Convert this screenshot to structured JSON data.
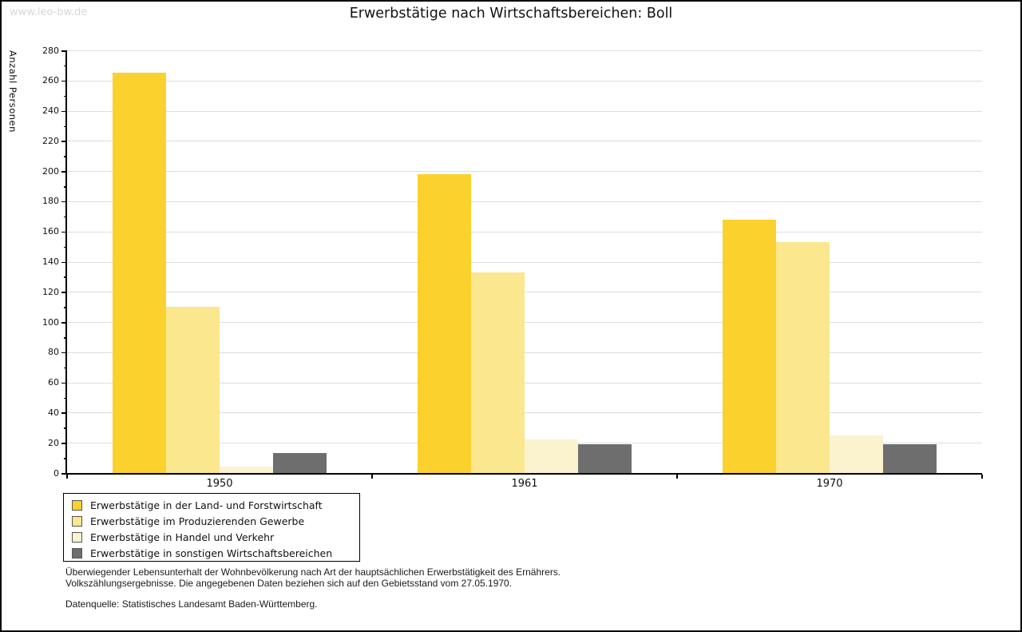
{
  "watermark": "www.leo-bw.de",
  "title": "Erwerbstätige nach Wirtschaftsbereichen: Boll",
  "chart_data": {
    "type": "bar",
    "categories": [
      "1950",
      "1961",
      "1970"
    ],
    "series": [
      {
        "name": "Erwerbstätige in der Land- und Forstwirtschaft",
        "color": "#FBD12D",
        "values": [
          265,
          198,
          168
        ]
      },
      {
        "name": "Erwerbstätige im Produzierenden Gewerbe",
        "color": "#FAE78E",
        "values": [
          110,
          133,
          153
        ]
      },
      {
        "name": "Erwerbstätige in Handel und Verkehr",
        "color": "#FBF3CE",
        "values": [
          4,
          22,
          25
        ]
      },
      {
        "name": "Erwerbstätige in sonstigen Wirtschaftsbereichen",
        "color": "#6E6E6E",
        "values": [
          13,
          19,
          19
        ]
      }
    ],
    "title": "Erwerbstätige nach Wirtschaftsbereichen: Boll",
    "xlabel": "",
    "ylabel": "Anzahl Personen",
    "ylim": [
      0,
      280
    ],
    "ytick_major": 20,
    "ytick_minor": 10,
    "grid": "horizontal-major",
    "legend_position": "bottom-left"
  },
  "footnote": {
    "line1": "Überwiegender Lebensunterhalt der Wohnbevölkerung nach Art der hauptsächlichen Erwerbstätigkeit des Ernährers.",
    "line2": "Volkszählungsergebnisse. Die angegebenen Daten beziehen sich auf den Gebietsstand vom 27.05.1970.",
    "source": "Datenquelle: Statistisches Landesamt Baden-Württemberg."
  },
  "colors": {
    "gridline": "#DEDEDE",
    "axis": "#000000",
    "watermark": "#D8D8D8",
    "swatch_border": "#555555"
  }
}
